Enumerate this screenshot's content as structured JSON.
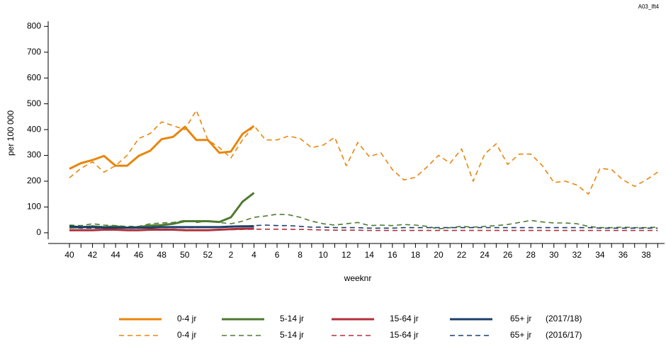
{
  "chart_data": {
    "type": "line",
    "annotation": "A03_lft4",
    "y_label": "per 100 000",
    "x_label": "weeknr",
    "categories": [
      "40",
      null,
      "42",
      null,
      "44",
      null,
      "46",
      null,
      "48",
      null,
      "50",
      null,
      "52",
      null,
      "2",
      null,
      "4",
      null,
      "6",
      null,
      "8",
      null,
      "10",
      null,
      "12",
      null,
      "14",
      null,
      "16",
      null,
      "18",
      null,
      "20",
      null,
      "22",
      null,
      "24",
      null,
      "26",
      null,
      "28",
      null,
      "30",
      null,
      "32",
      null,
      "34",
      null,
      "36",
      null,
      "38",
      null
    ],
    "ylim": [
      -25,
      820
    ],
    "yticks": [
      0,
      100,
      200,
      300,
      400,
      500,
      600,
      700,
      800
    ],
    "legend_notes": [
      "(2017/18)",
      "(2016/17)"
    ],
    "series": [
      {
        "name": "0-4 jr",
        "color": "#e8860d",
        "dash": false,
        "values": [
          248,
          270,
          282,
          298,
          260,
          260,
          298,
          318,
          363,
          372,
          411,
          360,
          360,
          310,
          315,
          383,
          414,
          null,
          null,
          null,
          null,
          null,
          null,
          null,
          null,
          null,
          null,
          null,
          null,
          null,
          null,
          null,
          null,
          null,
          null,
          null,
          null,
          null,
          null,
          null,
          null,
          null,
          null,
          null,
          null,
          null,
          null,
          null,
          null,
          null,
          null,
          null
        ]
      },
      {
        "name": "5-14 jr",
        "color": "#4e7a30",
        "dash": false,
        "values": [
          20,
          22,
          25,
          22,
          25,
          20,
          22,
          28,
          30,
          35,
          45,
          45,
          45,
          42,
          60,
          120,
          155,
          null,
          null,
          null,
          null,
          null,
          null,
          null,
          null,
          null,
          null,
          null,
          null,
          null,
          null,
          null,
          null,
          null,
          null,
          null,
          null,
          null,
          null,
          null,
          null,
          null,
          null,
          null,
          null,
          null,
          null,
          null,
          null,
          null,
          null,
          null
        ]
      },
      {
        "name": "15-64 jr",
        "color": "#b0303a",
        "dash": false,
        "values": [
          10,
          10,
          10,
          12,
          12,
          10,
          10,
          12,
          12,
          12,
          10,
          10,
          10,
          12,
          14,
          16,
          16,
          null,
          null,
          null,
          null,
          null,
          null,
          null,
          null,
          null,
          null,
          null,
          null,
          null,
          null,
          null,
          null,
          null,
          null,
          null,
          null,
          null,
          null,
          null,
          null,
          null,
          null,
          null,
          null,
          null,
          null,
          null,
          null,
          null,
          null,
          null
        ]
      },
      {
        "name": "65+ jr",
        "color": "#1b3f6b",
        "dash": false,
        "values": [
          25,
          22,
          22,
          20,
          20,
          20,
          20,
          20,
          22,
          22,
          22,
          22,
          22,
          22,
          24,
          25,
          25,
          null,
          null,
          null,
          null,
          null,
          null,
          null,
          null,
          null,
          null,
          null,
          null,
          null,
          null,
          null,
          null,
          null,
          null,
          null,
          null,
          null,
          null,
          null,
          null,
          null,
          null,
          null,
          null,
          null,
          null,
          null,
          null,
          null,
          null,
          null
        ]
      },
      {
        "name": "0-4 jr",
        "color": "#e8860d",
        "dash": true,
        "values": [
          213,
          250,
          275,
          235,
          260,
          300,
          365,
          385,
          430,
          415,
          400,
          475,
          360,
          330,
          290,
          360,
          415,
          360,
          360,
          375,
          365,
          330,
          340,
          370,
          260,
          350,
          295,
          310,
          245,
          205,
          215,
          255,
          300,
          270,
          325,
          200,
          305,
          345,
          265,
          305,
          305,
          260,
          195,
          200,
          185,
          150,
          250,
          245,
          205,
          180,
          205,
          235
        ]
      },
      {
        "name": "5-14 jr",
        "color": "#4e7a30",
        "dash": true,
        "values": [
          30,
          28,
          35,
          30,
          28,
          25,
          25,
          35,
          38,
          40,
          48,
          40,
          45,
          40,
          35,
          45,
          60,
          65,
          72,
          70,
          60,
          45,
          35,
          30,
          35,
          40,
          28,
          30,
          28,
          32,
          30,
          25,
          15,
          20,
          25,
          22,
          25,
          28,
          32,
          40,
          48,
          42,
          38,
          38,
          35,
          25,
          20,
          20,
          22,
          20,
          20,
          22
        ]
      },
      {
        "name": "15-64 jr",
        "color": "#b0303a",
        "dash": true,
        "values": [
          10,
          9,
          9,
          10,
          10,
          9,
          10,
          11,
          12,
          12,
          12,
          11,
          11,
          12,
          12,
          13,
          14,
          14,
          14,
          13,
          13,
          12,
          11,
          10,
          10,
          10,
          9,
          9,
          9,
          9,
          9,
          9,
          9,
          9,
          9,
          9,
          9,
          9,
          9,
          9,
          9,
          9,
          9,
          9,
          9,
          9,
          9,
          9,
          9,
          9,
          9,
          9
        ]
      },
      {
        "name": "65+ jr",
        "color": "#1b3f6b",
        "dash": true,
        "values": [
          20,
          18,
          18,
          18,
          18,
          18,
          18,
          20,
          20,
          20,
          20,
          20,
          22,
          22,
          22,
          25,
          28,
          30,
          28,
          28,
          25,
          22,
          22,
          20,
          20,
          20,
          18,
          18,
          18,
          20,
          20,
          20,
          20,
          20,
          20,
          20,
          20,
          20,
          20,
          20,
          20,
          20,
          20,
          20,
          20,
          20,
          18,
          18,
          18,
          18,
          18,
          18
        ]
      }
    ]
  }
}
